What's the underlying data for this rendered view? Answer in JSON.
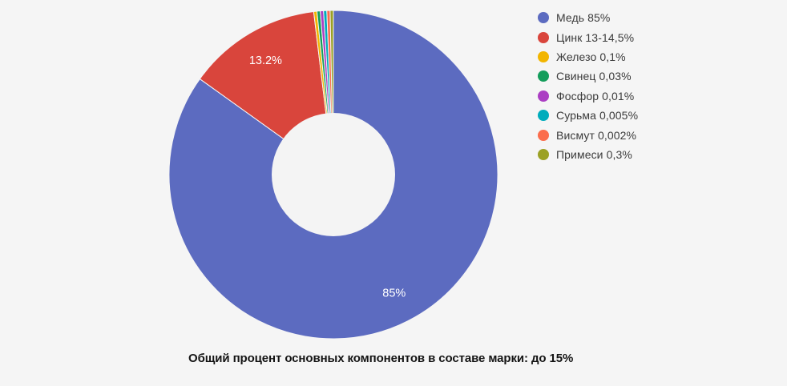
{
  "background": "#f5f5f5",
  "chart_data": {
    "type": "pie",
    "subtype": "donut",
    "legend_position": "right",
    "grid": false,
    "caption": "Общий процент основных компонентов в составе марки: до 15%",
    "slices": [
      {
        "name": "Медь",
        "legend_label": "Медь 85%",
        "value": 85,
        "display_label": "85%",
        "color": "#5C6BC0"
      },
      {
        "name": "Цинк",
        "legend_label": "Цинк 13-14,5%",
        "value": 13.2,
        "display_label": "13.2%",
        "color": "#D9453C"
      },
      {
        "name": "Железо",
        "legend_label": "Железо 0,1%",
        "value": 0.1,
        "display_label": "",
        "color": "#F2B500"
      },
      {
        "name": "Свинец",
        "legend_label": "Свинец 0,03%",
        "value": 0.03,
        "display_label": "",
        "color": "#149D5B"
      },
      {
        "name": "Фосфор",
        "legend_label": "Фосфор 0,01%",
        "value": 0.01,
        "display_label": "",
        "color": "#AB3FC3"
      },
      {
        "name": "Сурьма",
        "legend_label": "Сурьма 0,005%",
        "value": 0.005,
        "display_label": "",
        "color": "#00ACBC"
      },
      {
        "name": "Висмут",
        "legend_label": "Висмут 0,002%",
        "value": 0.002,
        "display_label": "",
        "color": "#FB6D4C"
      },
      {
        "name": "Примеси",
        "legend_label": "Примеси 0,3%",
        "value": 0.3,
        "display_label": "",
        "color": "#9BA125"
      }
    ]
  }
}
